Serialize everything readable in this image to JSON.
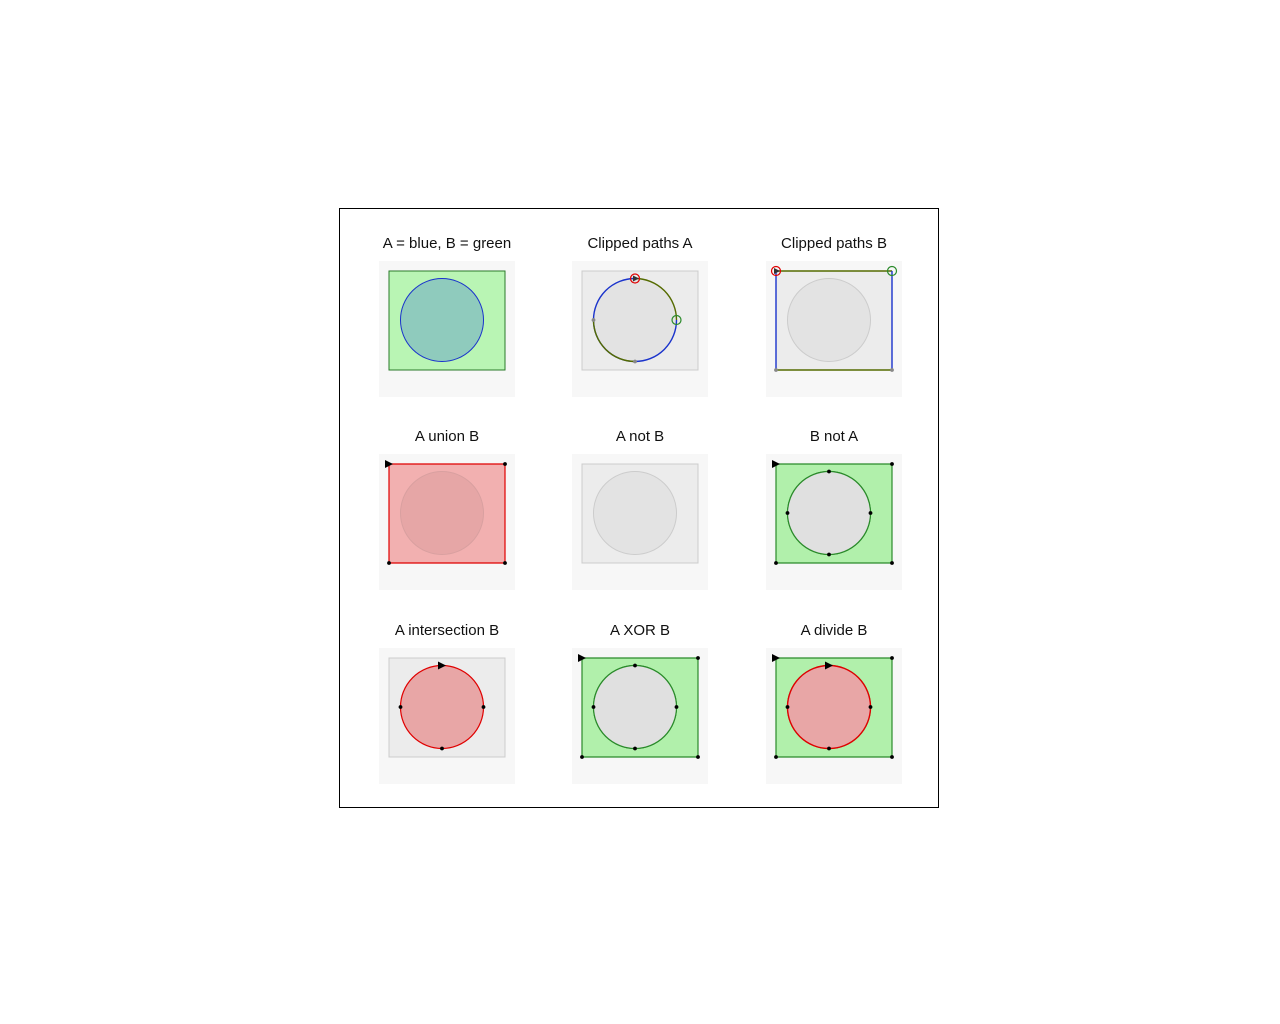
{
  "panels": [
    {
      "key": "input",
      "title": "A = blue, B = green"
    },
    {
      "key": "clipA",
      "title": "Clipped paths A"
    },
    {
      "key": "clipB",
      "title": "Clipped paths B"
    },
    {
      "key": "union",
      "title": "A union B"
    },
    {
      "key": "notAB",
      "title": "A not B"
    },
    {
      "key": "notBA",
      "title": "B not A"
    },
    {
      "key": "inter",
      "title": "A intersection B"
    },
    {
      "key": "xor",
      "title": "A XOR B"
    },
    {
      "key": "divide",
      "title": "A divide B"
    }
  ],
  "colors": {
    "shape_a": "#1a33cc",
    "shape_b": "#2a7a2a",
    "result_red": "#e00000",
    "result_green": "#2a8a2a",
    "panel_bg": "#f7f7f7",
    "ghost_fill": "#ececec"
  }
}
